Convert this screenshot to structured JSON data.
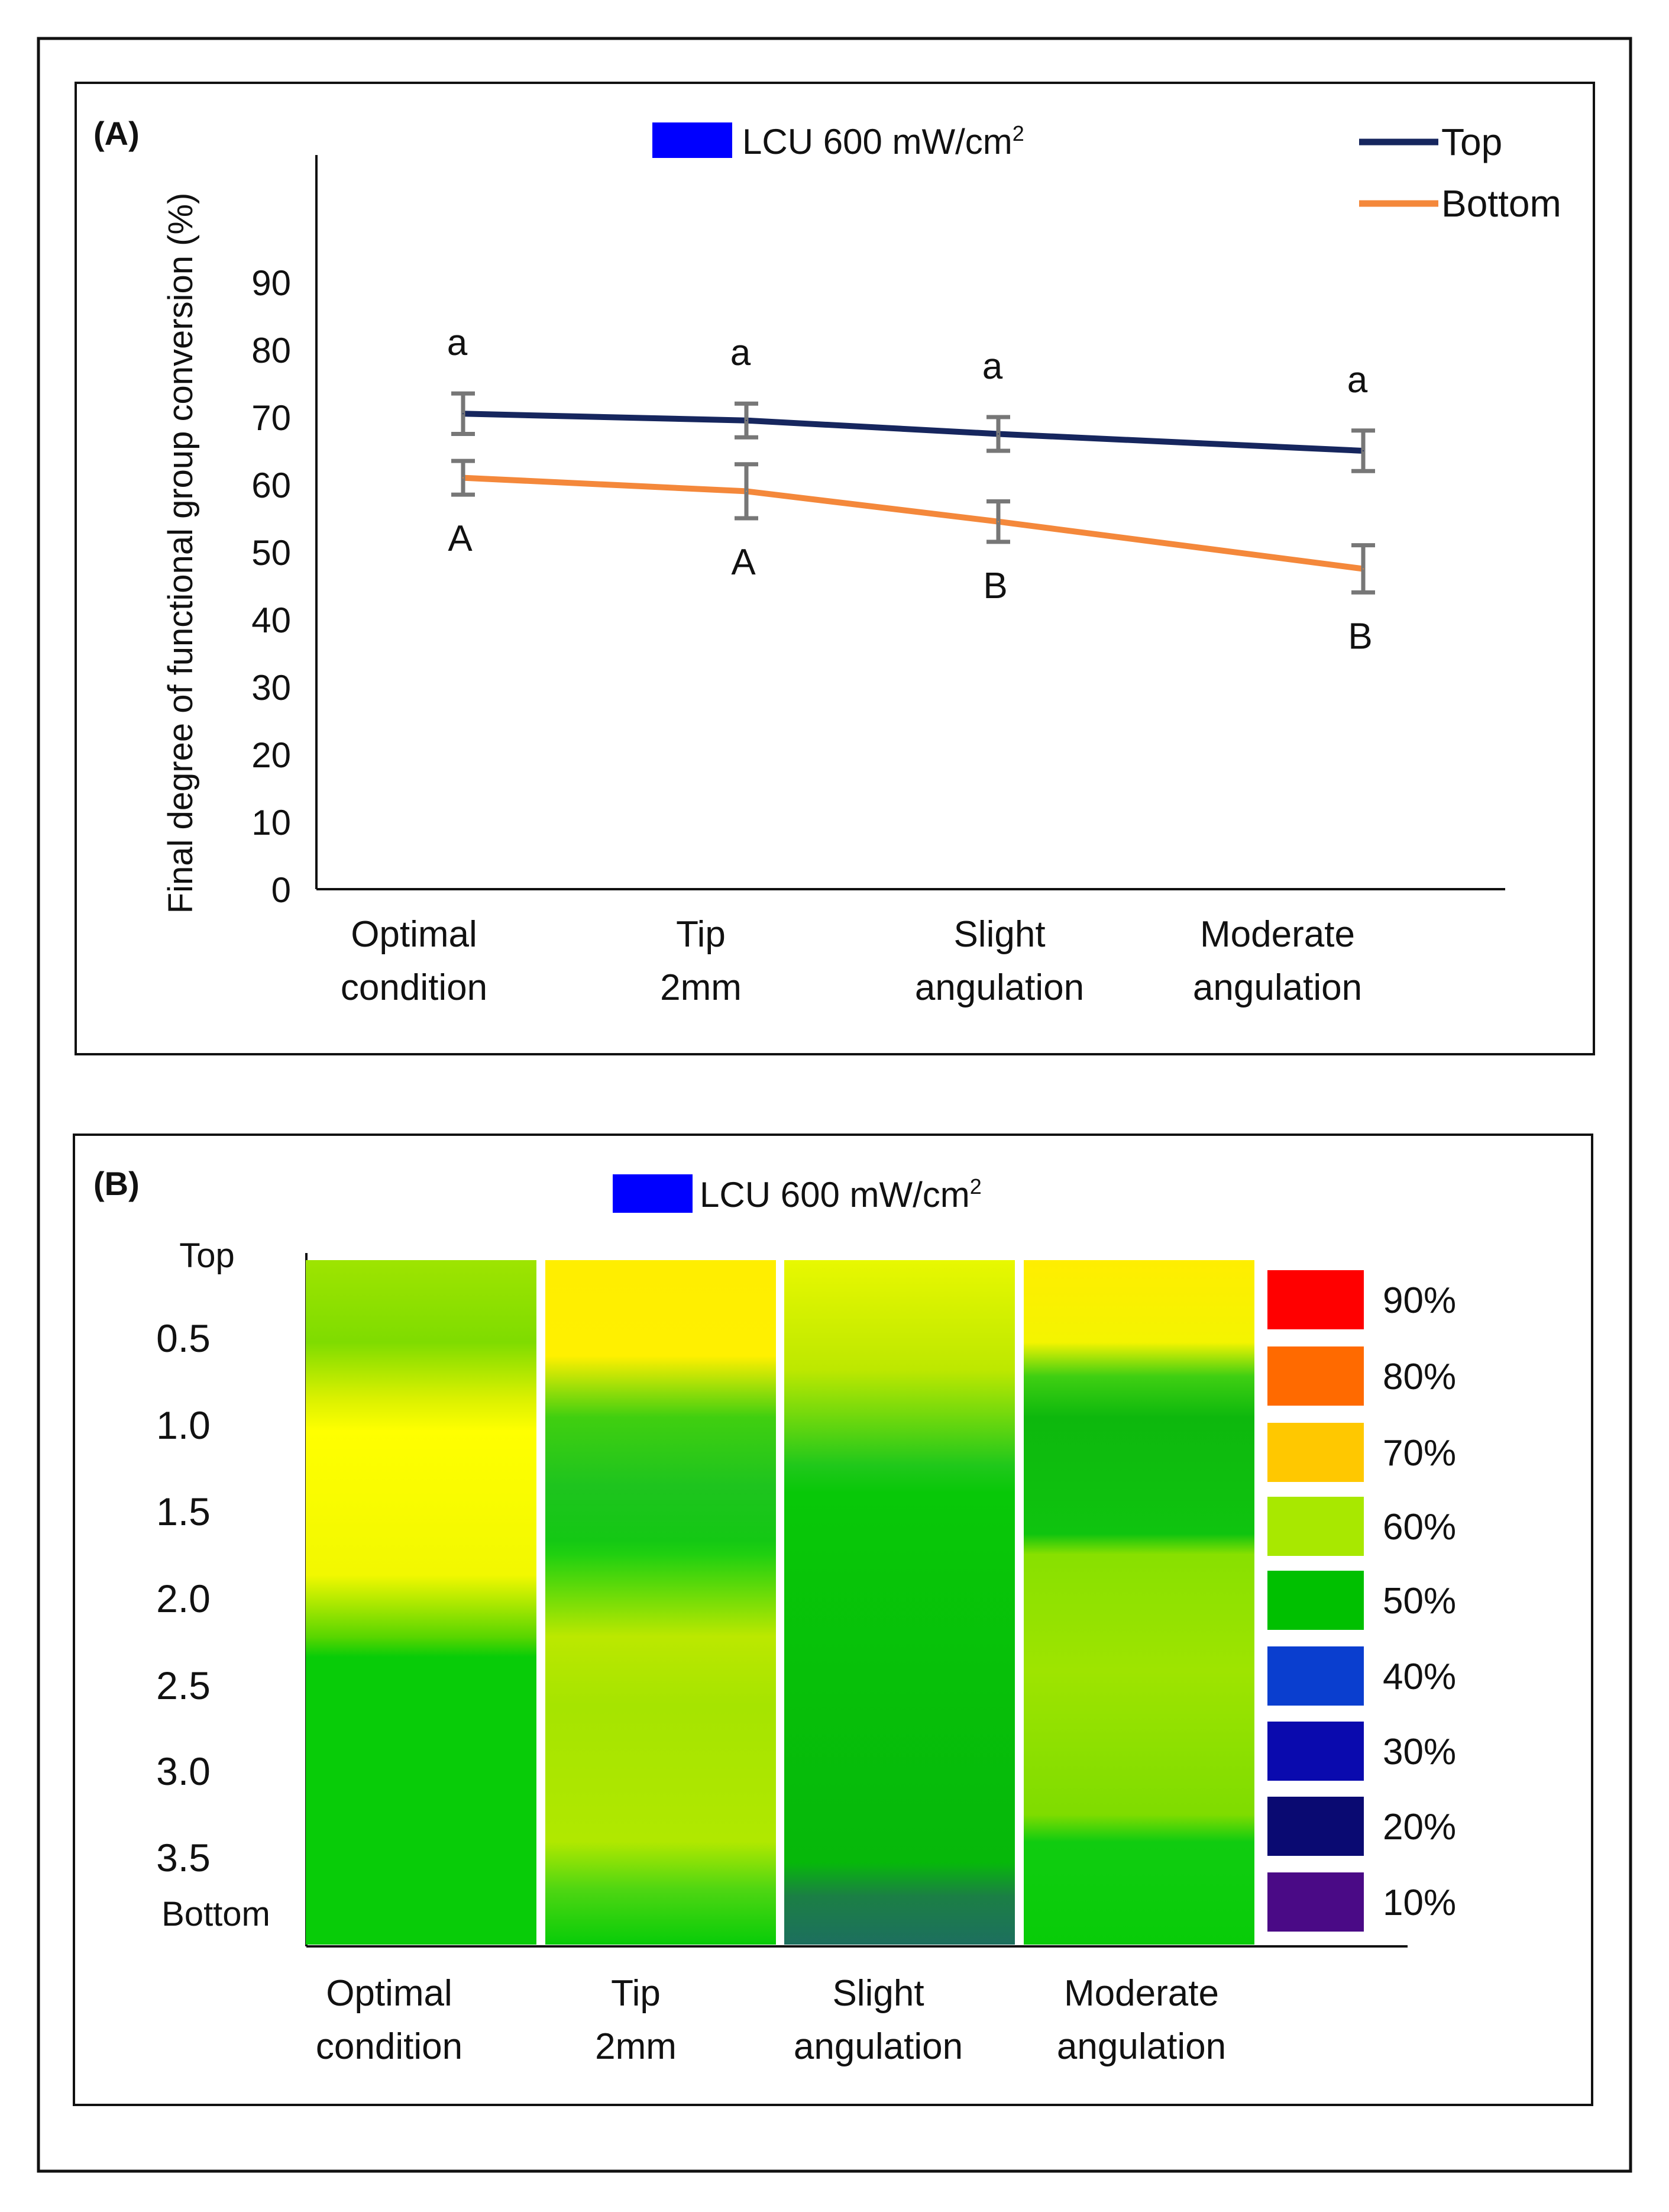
{
  "figure": {
    "panel_a_label": "(A)",
    "panel_b_label": "(B)"
  },
  "chart_data": [
    {
      "type": "line",
      "panel": "(A)",
      "legend_box_label": "LCU 600 mW/cm",
      "legend_box_superscript": "2",
      "legend_box_color": "#0000ff",
      "ylabel": "Final degree of functional group conversion (%)",
      "xlabel": "",
      "ylim": [
        0,
        100
      ],
      "yticks": [
        0,
        10,
        20,
        30,
        40,
        50,
        60,
        70,
        80,
        90
      ],
      "grid": false,
      "legend_position": "top-right",
      "categories": [
        [
          "Optimal",
          "condition"
        ],
        [
          "Tip",
          "2mm"
        ],
        [
          "Slight",
          "angulation"
        ],
        [
          "Moderate",
          "angulation"
        ]
      ],
      "series": [
        {
          "name": "Top",
          "color": "#16265e",
          "values": [
            70.5,
            69.5,
            67.5,
            65.0
          ],
          "error": [
            3.0,
            2.5,
            2.5,
            3.0
          ],
          "labels": [
            "a",
            "a",
            "a",
            "a"
          ]
        },
        {
          "name": "Bottom",
          "color": "#f4883b",
          "values": [
            61.0,
            59.0,
            54.5,
            47.5
          ],
          "error": [
            2.5,
            4.0,
            3.0,
            3.5
          ],
          "labels": [
            "A",
            "A",
            "B",
            "B"
          ]
        }
      ]
    },
    {
      "type": "heatmap",
      "panel": "(B)",
      "legend_box_label": "LCU  600 mW/cm",
      "legend_box_superscript": "2",
      "legend_box_color": "#0000ff",
      "y_axis_labels": [
        "Top",
        "0.5",
        "1.0",
        "1.5",
        "2.0",
        "2.5",
        "3.0",
        "3.5",
        "Bottom"
      ],
      "categories": [
        [
          "Optimal",
          "condition"
        ],
        [
          "Tip",
          "2mm"
        ],
        [
          "Slight",
          "angulation"
        ],
        [
          "Moderate",
          "angulation"
        ]
      ],
      "columns": [
        {
          "stops": [
            [
              0.0,
              "#9ee400"
            ],
            [
              0.12,
              "#7fdc00"
            ],
            [
              0.2,
              "#d8f000"
            ],
            [
              0.25,
              "#ffff00"
            ],
            [
              0.46,
              "#f2f800"
            ],
            [
              0.55,
              "#5ad600"
            ],
            [
              0.58,
              "#08cc08"
            ],
            [
              1.0,
              "#08cc08"
            ]
          ]
        },
        {
          "stops": [
            [
              0.0,
              "#ffee00"
            ],
            [
              0.14,
              "#fff000"
            ],
            [
              0.23,
              "#40cf10"
            ],
            [
              0.33,
              "#1ec41e"
            ],
            [
              0.41,
              "#14c814"
            ],
            [
              0.43,
              "#20d010"
            ],
            [
              0.55,
              "#bbe800"
            ],
            [
              0.65,
              "#a6e400"
            ],
            [
              0.85,
              "#b0e800"
            ],
            [
              0.92,
              "#4ed612"
            ],
            [
              1.0,
              "#08cc08"
            ]
          ]
        },
        {
          "stops": [
            [
              0.0,
              "#e8f800"
            ],
            [
              0.16,
              "#bde800"
            ],
            [
              0.3,
              "#20c81b"
            ],
            [
              0.34,
              "#08c808"
            ],
            [
              0.88,
              "#06b80a"
            ],
            [
              0.93,
              "#1b7f45"
            ],
            [
              1.0,
              "#1d6f5e"
            ]
          ]
        },
        {
          "stops": [
            [
              0.0,
              "#ffee00"
            ],
            [
              0.12,
              "#f4f400"
            ],
            [
              0.17,
              "#3fcf12"
            ],
            [
              0.23,
              "#0db80d"
            ],
            [
              0.4,
              "#0fc40f"
            ],
            [
              0.43,
              "#88e000"
            ],
            [
              0.6,
              "#9ee400"
            ],
            [
              0.81,
              "#7fdc00"
            ],
            [
              0.85,
              "#10cc10"
            ],
            [
              1.0,
              "#08cc08"
            ]
          ]
        }
      ],
      "scale": [
        {
          "label": "90%",
          "color": "#ff0000"
        },
        {
          "label": "80%",
          "color": "#ff6a00"
        },
        {
          "label": "70%",
          "color": "#ffc800"
        },
        {
          "label": "60%",
          "color": "#a8e800"
        },
        {
          "label": "50%",
          "color": "#00c000"
        },
        {
          "label": "40%",
          "color": "#0a3ecf"
        },
        {
          "label": "30%",
          "color": "#0a0aae"
        },
        {
          "label": "20%",
          "color": "#0a0a72"
        },
        {
          "label": "10%",
          "color": "#4a0a86"
        }
      ]
    }
  ]
}
